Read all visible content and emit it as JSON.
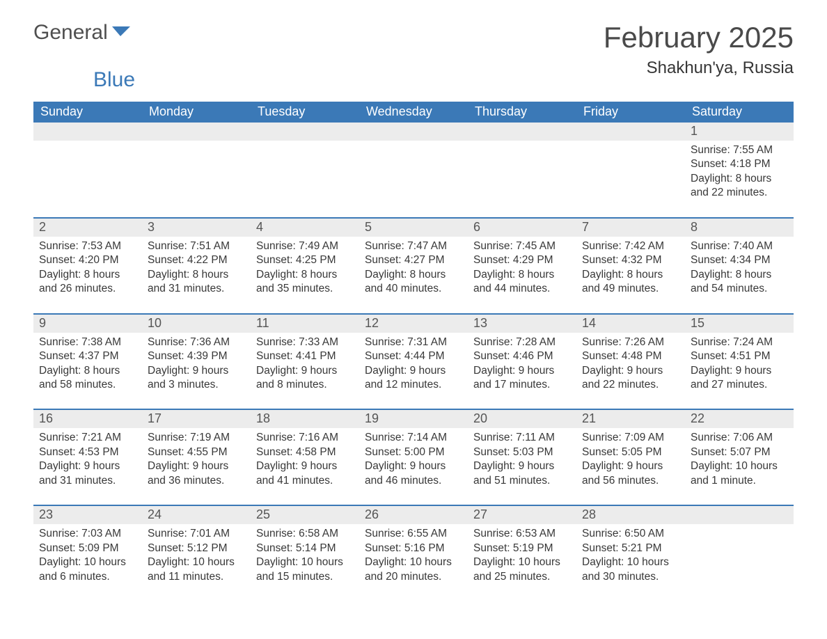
{
  "logo": {
    "text_a": "General",
    "text_b": "Blue"
  },
  "title": "February 2025",
  "location": "Shakhun'ya, Russia",
  "colors": {
    "header_bg": "#3b79b7",
    "header_text": "#ffffff",
    "strip_bg": "#ececec",
    "border": "#3b79b7",
    "body_text": "#383838",
    "title_text": "#4a4a4a"
  },
  "dow": [
    "Sunday",
    "Monday",
    "Tuesday",
    "Wednesday",
    "Thursday",
    "Friday",
    "Saturday"
  ],
  "weeks": [
    [
      {
        "n": "",
        "sr": "",
        "ss": "",
        "dl": ""
      },
      {
        "n": "",
        "sr": "",
        "ss": "",
        "dl": ""
      },
      {
        "n": "",
        "sr": "",
        "ss": "",
        "dl": ""
      },
      {
        "n": "",
        "sr": "",
        "ss": "",
        "dl": ""
      },
      {
        "n": "",
        "sr": "",
        "ss": "",
        "dl": ""
      },
      {
        "n": "",
        "sr": "",
        "ss": "",
        "dl": ""
      },
      {
        "n": "1",
        "sr": "Sunrise: 7:55 AM",
        "ss": "Sunset: 4:18 PM",
        "dl": "Daylight: 8 hours and 22 minutes."
      }
    ],
    [
      {
        "n": "2",
        "sr": "Sunrise: 7:53 AM",
        "ss": "Sunset: 4:20 PM",
        "dl": "Daylight: 8 hours and 26 minutes."
      },
      {
        "n": "3",
        "sr": "Sunrise: 7:51 AM",
        "ss": "Sunset: 4:22 PM",
        "dl": "Daylight: 8 hours and 31 minutes."
      },
      {
        "n": "4",
        "sr": "Sunrise: 7:49 AM",
        "ss": "Sunset: 4:25 PM",
        "dl": "Daylight: 8 hours and 35 minutes."
      },
      {
        "n": "5",
        "sr": "Sunrise: 7:47 AM",
        "ss": "Sunset: 4:27 PM",
        "dl": "Daylight: 8 hours and 40 minutes."
      },
      {
        "n": "6",
        "sr": "Sunrise: 7:45 AM",
        "ss": "Sunset: 4:29 PM",
        "dl": "Daylight: 8 hours and 44 minutes."
      },
      {
        "n": "7",
        "sr": "Sunrise: 7:42 AM",
        "ss": "Sunset: 4:32 PM",
        "dl": "Daylight: 8 hours and 49 minutes."
      },
      {
        "n": "8",
        "sr": "Sunrise: 7:40 AM",
        "ss": "Sunset: 4:34 PM",
        "dl": "Daylight: 8 hours and 54 minutes."
      }
    ],
    [
      {
        "n": "9",
        "sr": "Sunrise: 7:38 AM",
        "ss": "Sunset: 4:37 PM",
        "dl": "Daylight: 8 hours and 58 minutes."
      },
      {
        "n": "10",
        "sr": "Sunrise: 7:36 AM",
        "ss": "Sunset: 4:39 PM",
        "dl": "Daylight: 9 hours and 3 minutes."
      },
      {
        "n": "11",
        "sr": "Sunrise: 7:33 AM",
        "ss": "Sunset: 4:41 PM",
        "dl": "Daylight: 9 hours and 8 minutes."
      },
      {
        "n": "12",
        "sr": "Sunrise: 7:31 AM",
        "ss": "Sunset: 4:44 PM",
        "dl": "Daylight: 9 hours and 12 minutes."
      },
      {
        "n": "13",
        "sr": "Sunrise: 7:28 AM",
        "ss": "Sunset: 4:46 PM",
        "dl": "Daylight: 9 hours and 17 minutes."
      },
      {
        "n": "14",
        "sr": "Sunrise: 7:26 AM",
        "ss": "Sunset: 4:48 PM",
        "dl": "Daylight: 9 hours and 22 minutes."
      },
      {
        "n": "15",
        "sr": "Sunrise: 7:24 AM",
        "ss": "Sunset: 4:51 PM",
        "dl": "Daylight: 9 hours and 27 minutes."
      }
    ],
    [
      {
        "n": "16",
        "sr": "Sunrise: 7:21 AM",
        "ss": "Sunset: 4:53 PM",
        "dl": "Daylight: 9 hours and 31 minutes."
      },
      {
        "n": "17",
        "sr": "Sunrise: 7:19 AM",
        "ss": "Sunset: 4:55 PM",
        "dl": "Daylight: 9 hours and 36 minutes."
      },
      {
        "n": "18",
        "sr": "Sunrise: 7:16 AM",
        "ss": "Sunset: 4:58 PM",
        "dl": "Daylight: 9 hours and 41 minutes."
      },
      {
        "n": "19",
        "sr": "Sunrise: 7:14 AM",
        "ss": "Sunset: 5:00 PM",
        "dl": "Daylight: 9 hours and 46 minutes."
      },
      {
        "n": "20",
        "sr": "Sunrise: 7:11 AM",
        "ss": "Sunset: 5:03 PM",
        "dl": "Daylight: 9 hours and 51 minutes."
      },
      {
        "n": "21",
        "sr": "Sunrise: 7:09 AM",
        "ss": "Sunset: 5:05 PM",
        "dl": "Daylight: 9 hours and 56 minutes."
      },
      {
        "n": "22",
        "sr": "Sunrise: 7:06 AM",
        "ss": "Sunset: 5:07 PM",
        "dl": "Daylight: 10 hours and 1 minute."
      }
    ],
    [
      {
        "n": "23",
        "sr": "Sunrise: 7:03 AM",
        "ss": "Sunset: 5:09 PM",
        "dl": "Daylight: 10 hours and 6 minutes."
      },
      {
        "n": "24",
        "sr": "Sunrise: 7:01 AM",
        "ss": "Sunset: 5:12 PM",
        "dl": "Daylight: 10 hours and 11 minutes."
      },
      {
        "n": "25",
        "sr": "Sunrise: 6:58 AM",
        "ss": "Sunset: 5:14 PM",
        "dl": "Daylight: 10 hours and 15 minutes."
      },
      {
        "n": "26",
        "sr": "Sunrise: 6:55 AM",
        "ss": "Sunset: 5:16 PM",
        "dl": "Daylight: 10 hours and 20 minutes."
      },
      {
        "n": "27",
        "sr": "Sunrise: 6:53 AM",
        "ss": "Sunset: 5:19 PM",
        "dl": "Daylight: 10 hours and 25 minutes."
      },
      {
        "n": "28",
        "sr": "Sunrise: 6:50 AM",
        "ss": "Sunset: 5:21 PM",
        "dl": "Daylight: 10 hours and 30 minutes."
      },
      {
        "n": "",
        "sr": "",
        "ss": "",
        "dl": ""
      }
    ]
  ]
}
